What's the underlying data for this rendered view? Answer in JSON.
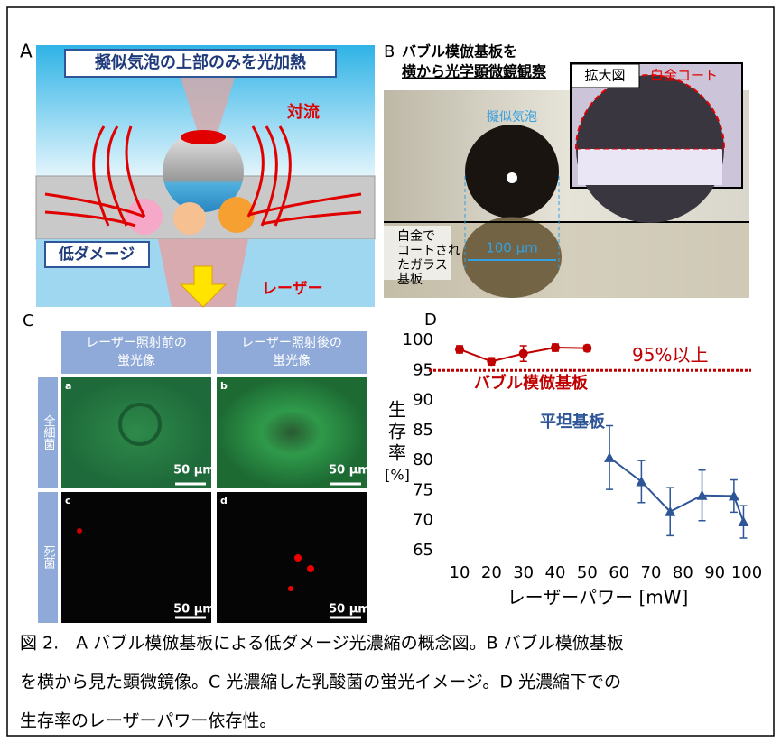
{
  "panel_a": {
    "label": "A",
    "heading": "擬似気泡の上部のみを光加熱",
    "convection": "対流",
    "low_damage": "低ダメージ",
    "laser": "レーザー"
  },
  "panel_b": {
    "label": "B",
    "heading": [
      "バブル模倣基板を",
      "横から光学顕微鏡観察"
    ],
    "inset_label": "拡大図",
    "coat": "白金コート",
    "bubble": "擬似気泡",
    "substrate": [
      "白金で",
      "コートされ",
      "たガラス",
      "基板"
    ],
    "scale": "100 µm"
  },
  "panel_c": {
    "label": "C",
    "headers": [
      [
        "レーザー照射前の",
        "蛍光像"
      ],
      [
        "レーザー照射後の",
        "蛍光像"
      ]
    ],
    "rows": [
      "全細菌",
      "死菌"
    ],
    "sub": [
      "a",
      "b",
      "c",
      "d"
    ],
    "scale": "50 µm"
  },
  "chart_data": {
    "type": "line",
    "label": "D",
    "xlabel": "レーザーパワー [mW]",
    "ylabel": [
      "生",
      "存",
      "率",
      "[%]"
    ],
    "xlim": [
      10,
      100
    ],
    "xticks": [
      10,
      20,
      30,
      40,
      50,
      60,
      70,
      80,
      90,
      100
    ],
    "ylim": [
      65,
      100
    ],
    "yticks": [
      65,
      70,
      75,
      80,
      85,
      90,
      95,
      100
    ],
    "threshold": {
      "value": 95,
      "label": "95%以上",
      "color": "#c00000"
    },
    "series": [
      {
        "name": "バブル模倣基板",
        "color": "#c00000",
        "marker": "circle",
        "x": [
          10,
          20,
          30,
          40,
          50
        ],
        "values": [
          98.5,
          96.5,
          97.8,
          98.8,
          98.7
        ],
        "errors": [
          0.6,
          0.6,
          1.3,
          0.6,
          0.5
        ]
      },
      {
        "name": "平坦基板",
        "color": "#2e5597",
        "marker": "triangle",
        "x": [
          57,
          67,
          76,
          86,
          96,
          99
        ],
        "values": [
          80.5,
          76.5,
          71.5,
          74.2,
          74.1,
          69.8
        ],
        "errors": [
          5.3,
          3.5,
          4,
          4.2,
          2.7,
          2.7
        ]
      }
    ]
  },
  "caption": [
    "図 2.　A バブル模倣基板による低ダメージ光濃縮の概念図。B バブル模倣基板",
    "を横から見た顕微鏡像。C 光濃縮した乳酸菌の蛍光イメージ。D 光濃縮下での",
    "生存率のレーザーパワー依存性。"
  ]
}
